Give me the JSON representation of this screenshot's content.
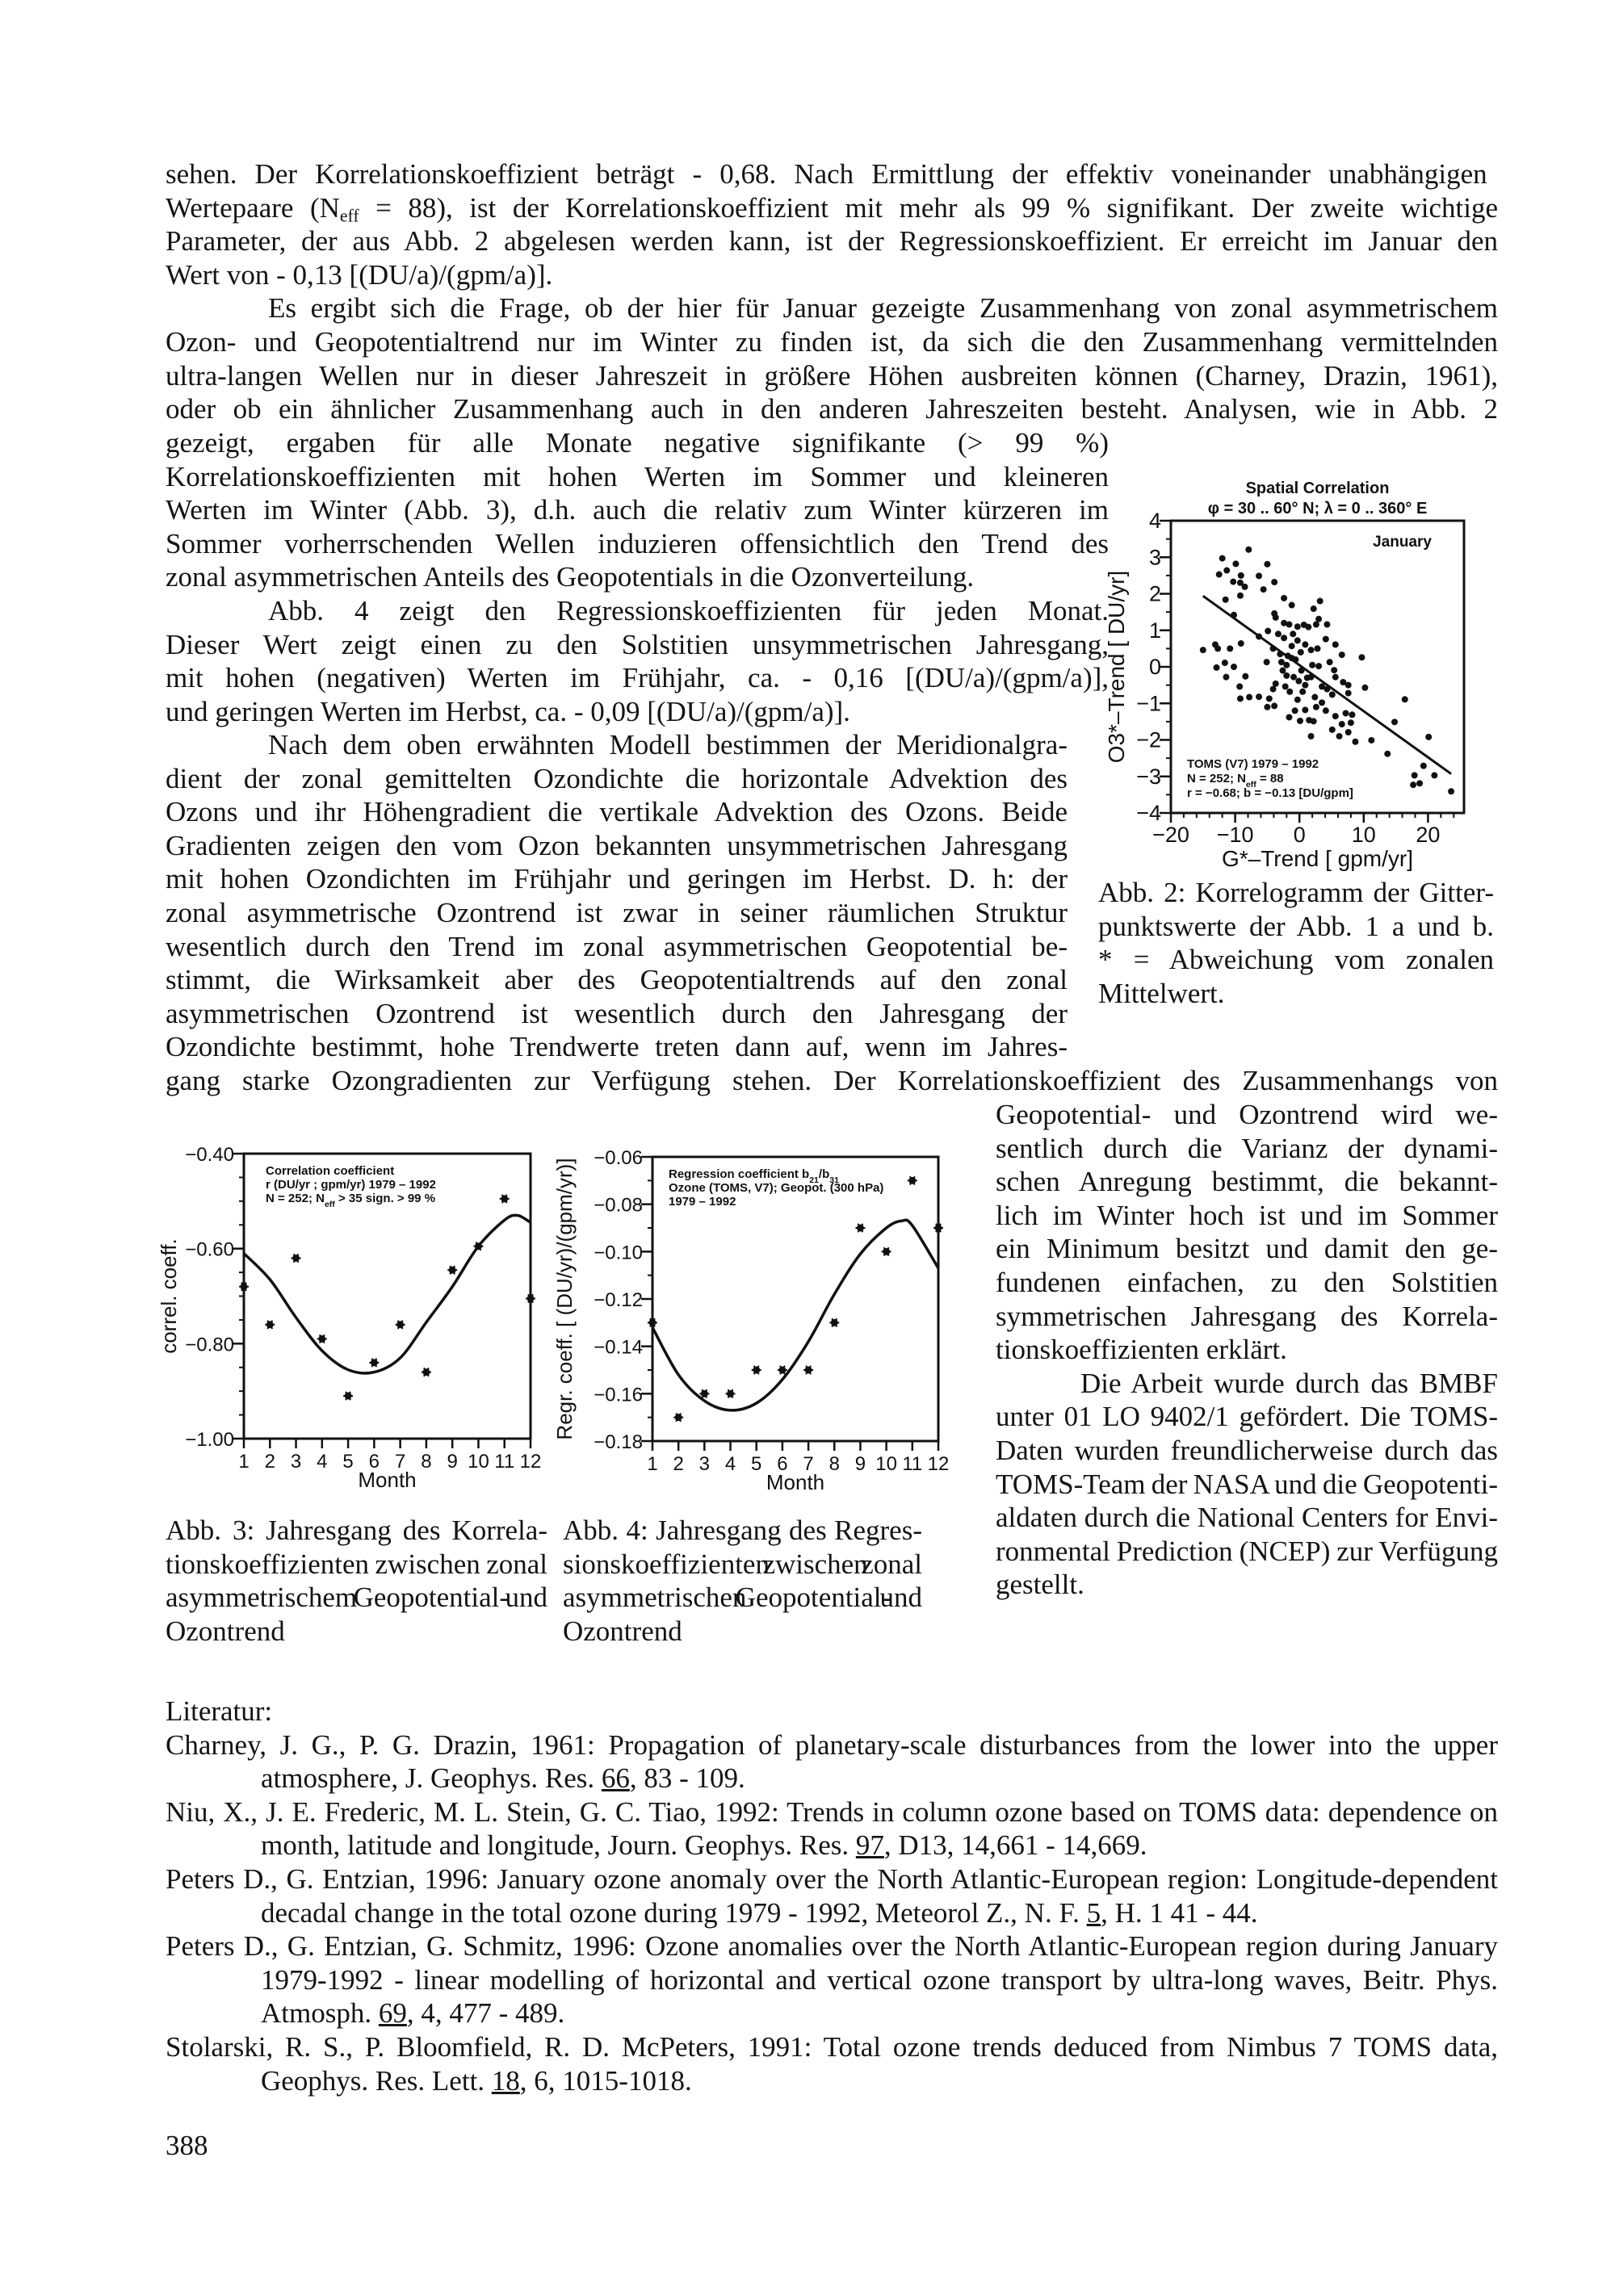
{
  "body": {
    "block_a": [
      "sehen. Der Korrelationskoeffizient beträgt - 0,68.  Nach Ermittlung der effektiv voneinander unabhängigen",
      [
        {
          "t": "Wertepaare (N"
        },
        {
          "t": "eff",
          "sub": true
        },
        {
          "t": " = 88), ist der Korrelationskoeffizient mit mehr als 99 % signifikant. Der zweite wichtige"
        }
      ],
      "Parameter, der aus Abb. 2 abgelesen werden kann, ist der Regressionskoeffizient. Er erreicht im Januar den",
      "Wert von - 0,13 [(DU/a)/(gpm/a)].",
      "Es ergibt sich die Frage, ob der hier für Januar gezeigte Zusammenhang von zonal asymmetrischem",
      "Ozon- und Geopotentialtrend nur im Winter zu finden ist, da sich die den Zusammenhang vermittelnden",
      "ultra-langen Wellen nur in dieser Jahreszeit in größere Höhen ausbreiten können (Charney, Drazin, 1961),",
      "oder ob ein ähnlicher Zusammenhang auch in den anderen Jahreszeiten besteht. Analysen, wie in Abb. 2"
    ],
    "block_b": [
      "gezeigt, ergaben für alle Monate negative signifikante (> 99 %)",
      "Korrelationskoeffizienten mit hohen Werten im Sommer und kleineren",
      "Werten im Winter (Abb. 3), d.h. auch die relativ zum Winter kürzeren im",
      "Sommer vorherrschenden Wellen induzieren offensichtlich den Trend des",
      "zonal asymmetrischen Anteils des Geopotentials in die Ozonverteilung.",
      "Abb. 4 zeigt den Regressionskoeffizienten für jeden Monat.",
      "Dieser Wert zeigt einen zu den Solstitien unsymmetrischen Jahresgang,",
      "mit hohen (negativen) Werten im Frühjahr, ca. - 0,16 [(DU/a)/(gpm/a)],",
      "und geringen Werten im Herbst, ca. - 0,09 [(DU/a)/(gpm/a)]."
    ],
    "block_c": [
      "Nach dem oben erwähnten Modell bestimmen der Meridionalgra-",
      "dient der zonal gemittelten Ozondichte die horizontale Advektion des",
      "Ozons und ihr Höhengradient die vertikale Advektion des Ozons. Beide",
      "Gradienten zeigen den vom Ozon bekannten unsymmetrischen Jahresgang",
      "mit hohen Ozondichten im Frühjahr und geringen im Herbst. D. h: der",
      "zonal asymmetrische Ozontrend ist zwar in seiner räumlichen Struktur",
      "wesentlich durch den Trend im zonal asymmetrischen Geopotential be-",
      "stimmt, die Wirksamkeit aber des Geopotentialtrends auf den zonal",
      "asymmetrischen Ozontrend ist wesentlich durch den Jahresgang der",
      "Ozondichte bestimmt, hohe Trendwerte treten dann auf, wenn im Jahres-"
    ],
    "block_d": [
      "gang starke Ozongradienten zur Verfügung stehen. Der Korrelationskoeffizient des Zusammenhangs von"
    ],
    "block_e": [
      "Geopotential- und Ozontrend wird we-",
      "sentlich durch die Varianz der dynami-",
      "schen Anregung bestimmt, die bekannt-",
      "lich im Winter hoch ist und im Sommer",
      "ein Minimum besitzt und damit den ge-",
      "fundenen einfachen, zu den Solstitien",
      "symmetrischen Jahresgang des Korrela-",
      "tionskoeffizienten erklärt.",
      "Die Arbeit wurde durch das BMBF",
      "unter 01 LO 9402/1 gefördert. Die TOMS-",
      "Daten wurden freundlicherweise durch das",
      "TOMS-Team der NASA und die Geopotenti-",
      "aldaten durch die National Centers for Envi-",
      "ronmental Prediction (NCEP) zur Verfügung",
      "gestellt."
    ]
  },
  "captions": {
    "abb2": [
      "Abb. 2: Korrelogramm der Gitter-",
      "punktswerte der Abb. 1 a und b.",
      "* = Abweichung vom zonalen",
      "Mittelwert."
    ],
    "abb3": [
      "Abb. 3: Jahresgang des Korrela-",
      "tionskoeffizienten zwischen zonal",
      "asymmetrischem Geopotential- und",
      "Ozontrend"
    ],
    "abb4": [
      "Abb. 4: Jahresgang des Regres-",
      "sionskoeffizienten zwischen zonal",
      "asymmetrischen Geopotential- und",
      "Ozontrend"
    ]
  },
  "literature": {
    "heading": "Literatur:",
    "entries": [
      {
        "lines": [
          "Charney, J. G., P. G. Drazin, 1961: Propagation of planetary-scale disturbances from the lower into the upper",
          [
            {
              "t": "atmosphere, J. Geophys. Res. "
            },
            {
              "t": "66",
              "u": true
            },
            {
              "t": ", 83 - 109."
            }
          ]
        ]
      },
      {
        "lines": [
          "Niu, X., J. E. Frederic, M. L. Stein, G. C. Tiao, 1992: Trends in column ozone based on TOMS data: dependence on",
          [
            {
              "t": "month, latitude and longitude, Journ. Geophys. Res. "
            },
            {
              "t": "97",
              "u": true
            },
            {
              "t": ", D13, 14,661 - 14,669."
            }
          ]
        ]
      },
      {
        "lines": [
          "Peters D., G. Entzian, 1996: January ozone anomaly over the North Atlantic-European region: Longitude-dependent",
          [
            {
              "t": "decadal change in the total ozone during 1979 - 1992, Meteorol Z., N. F. "
            },
            {
              "t": "5",
              "u": true
            },
            {
              "t": ", H. 1 41 - 44."
            }
          ]
        ]
      },
      {
        "lines": [
          "Peters D., G. Entzian, G. Schmitz, 1996: Ozone anomalies over the North Atlantic-European region during January",
          "1979-1992 - linear modelling of horizontal and vertical ozone transport by ultra-long waves, Beitr. Phys.",
          [
            {
              "t": "Atmosph. "
            },
            {
              "t": "69",
              "u": true
            },
            {
              "t": ", 4, 477 - 489."
            }
          ]
        ]
      },
      {
        "lines": [
          "Stolarski, R. S., P. Bloomfield, R. D. McPeters, 1991: Total ozone trends deduced from Nimbus 7 TOMS data,",
          [
            {
              "t": "Geophys. Res. Lett. "
            },
            {
              "t": "18",
              "u": true
            },
            {
              "t": ", 6, 1015-1018."
            }
          ]
        ]
      }
    ]
  },
  "page_number": "388",
  "chart_data": [
    {
      "type": "scatter",
      "title": "Spatial Correlation",
      "subtitle": "φ = 30 .. 60° N; λ = 0 .. 360° E",
      "panel_label": "January",
      "xlabel": "G*–Trend [ gpm/yr]",
      "ylabel": "O3*–Trend [ DU/yr]",
      "xlim": [
        -20,
        25.6
      ],
      "ylim": [
        -4,
        4
      ],
      "xticks": [
        -20,
        -10,
        0,
        10,
        20
      ],
      "yticks": [
        -4,
        -3,
        -2,
        -1,
        0,
        1,
        2,
        3,
        4
      ],
      "grid": false,
      "annotation": [
        [
          {
            "t": "TOMS (V7) 1979 – 1992"
          }
        ],
        [
          {
            "t": "N = 252; N"
          },
          {
            "t": "eff",
            "sub": true
          },
          {
            "t": " = 88"
          }
        ],
        [
          {
            "t": "r = −0.68; b = −0.13 [DU/gpm]"
          }
        ]
      ],
      "points": [
        [
          -12.0,
          2.97
        ],
        [
          -12.5,
          2.53
        ],
        [
          -11.3,
          2.64
        ],
        [
          -9.9,
          2.82
        ],
        [
          -10.3,
          2.33
        ],
        [
          -9.1,
          2.5
        ],
        [
          -9.2,
          2.3
        ],
        [
          -8.5,
          2.19
        ],
        [
          -9.2,
          1.95
        ],
        [
          -7.9,
          3.21
        ],
        [
          -6.3,
          2.49
        ],
        [
          -5.0,
          2.81
        ],
        [
          -5.6,
          2.12
        ],
        [
          -3.9,
          2.32
        ],
        [
          -11.5,
          1.84
        ],
        [
          -10.2,
          1.42
        ],
        [
          -2.4,
          1.88
        ],
        [
          -1.2,
          1.69
        ],
        [
          3.2,
          1.8
        ],
        [
          2.2,
          1.59
        ],
        [
          -15.0,
          0.46
        ],
        [
          -13.1,
          0.61
        ],
        [
          -12.7,
          0.5
        ],
        [
          -10.8,
          0.5
        ],
        [
          -9.1,
          0.64
        ],
        [
          -12.9,
          -0.02
        ],
        [
          -11.6,
          0.11
        ],
        [
          -10.2,
          0.0
        ],
        [
          -11.4,
          -0.28
        ],
        [
          -8.4,
          -0.26
        ],
        [
          -9.3,
          -0.54
        ],
        [
          -9.2,
          -0.87
        ],
        [
          -7.8,
          -0.83
        ],
        [
          -6.3,
          -0.82
        ],
        [
          -4.7,
          -0.87
        ],
        [
          -5.0,
          -1.1
        ],
        [
          -3.9,
          -1.07
        ],
        [
          -6.3,
          0.83
        ],
        [
          -4.9,
          0.98
        ],
        [
          -3.9,
          1.46
        ],
        [
          -3.7,
          1.35
        ],
        [
          -2.4,
          1.2
        ],
        [
          -1.6,
          1.16
        ],
        [
          -2.4,
          0.79
        ],
        [
          -4.1,
          0.5
        ],
        [
          -5.1,
          0.13
        ],
        [
          -2.8,
          0.13
        ],
        [
          -2.0,
          0.05
        ],
        [
          -1.2,
          0.24
        ],
        [
          -0.3,
          1.1
        ],
        [
          0.7,
          1.15
        ],
        [
          1.4,
          1.09
        ],
        [
          2.6,
          1.16
        ],
        [
          3.0,
          1.31
        ],
        [
          4.3,
          1.16
        ],
        [
          4.1,
          0.76
        ],
        [
          5.6,
          0.61
        ],
        [
          6.6,
          0.33
        ],
        [
          9.7,
          0.26
        ],
        [
          -0.3,
          0.72
        ],
        [
          -1.2,
          0.57
        ],
        [
          0.9,
          0.61
        ],
        [
          1.8,
          0.46
        ],
        [
          2.8,
          0.5
        ],
        [
          4.7,
          0.13
        ],
        [
          2.0,
          0.05
        ],
        [
          3.0,
          0.02
        ],
        [
          -2.0,
          -0.24
        ],
        [
          -0.9,
          -0.28
        ],
        [
          -3.7,
          -0.46
        ],
        [
          -4.1,
          -0.61
        ],
        [
          -2.2,
          -0.54
        ],
        [
          -1.5,
          -0.68
        ],
        [
          -0.1,
          -0.39
        ],
        [
          0.9,
          -0.5
        ],
        [
          1.8,
          -0.28
        ],
        [
          0.5,
          -0.68
        ],
        [
          -0.3,
          -0.9
        ],
        [
          -0.7,
          -1.2
        ],
        [
          -1.6,
          -1.38
        ],
        [
          0.1,
          -1.48
        ],
        [
          0.9,
          -1.18
        ],
        [
          1.5,
          -1.46
        ],
        [
          2.2,
          -1.49
        ],
        [
          1.8,
          -1.9
        ],
        [
          3.5,
          -0.98
        ],
        [
          4.1,
          -1.2
        ],
        [
          2.4,
          -0.83
        ],
        [
          3.5,
          -0.54
        ],
        [
          4.3,
          -0.61
        ],
        [
          5.1,
          -0.76
        ],
        [
          5.6,
          -0.28
        ],
        [
          5.4,
          -0.09
        ],
        [
          6.8,
          -0.42
        ],
        [
          7.6,
          -0.5
        ],
        [
          7.6,
          -0.72
        ],
        [
          7.2,
          -1.27
        ],
        [
          8.2,
          -1.31
        ],
        [
          8.0,
          -1.53
        ],
        [
          6.6,
          -1.57
        ],
        [
          7.6,
          -1.79
        ],
        [
          5.1,
          -1.72
        ],
        [
          5.6,
          -1.35
        ],
        [
          6.2,
          -1.9
        ],
        [
          8.7,
          -2.05
        ],
        [
          10.2,
          -0.57
        ],
        [
          11.2,
          -2.01
        ],
        [
          13.7,
          -2.38
        ],
        [
          14.8,
          -1.51
        ],
        [
          16.4,
          -0.89
        ],
        [
          17.9,
          -2.97
        ],
        [
          17.7,
          -3.23
        ],
        [
          18.7,
          -3.19
        ],
        [
          19.3,
          -2.71
        ],
        [
          20.1,
          -1.92
        ],
        [
          21.0,
          -2.97
        ],
        [
          23.6,
          -3.41
        ],
        [
          -3.0,
          0.35
        ],
        [
          -1.8,
          0.3
        ],
        [
          -0.6,
          0.2
        ],
        [
          0.3,
          -0.1
        ],
        [
          1.2,
          -0.3
        ],
        [
          -3.3,
          0.9
        ],
        [
          -1.0,
          0.9
        ],
        [
          0.2,
          0.4
        ],
        [
          -2.6,
          -0.1
        ],
        [
          2.6,
          -1.1
        ]
      ],
      "regression_line": {
        "x": [
          -15.0,
          23.6
        ],
        "y": [
          1.94,
          -2.93
        ]
      }
    },
    {
      "type": "scatter",
      "xlabel": "Month",
      "ylabel": "correl. coeff.",
      "xlim": [
        1,
        12
      ],
      "ylim": [
        -1.0,
        -0.4
      ],
      "xticks": [
        1,
        2,
        3,
        4,
        5,
        6,
        7,
        8,
        9,
        10,
        11,
        12
      ],
      "yticks": [
        -1.0,
        -0.8,
        -0.6,
        -0.4
      ],
      "grid": false,
      "annotation": [
        [
          {
            "t": "Correlation coefficient"
          }
        ],
        [
          {
            "t": "r (DU/yr ; gpm/yr) 1979 – 1992"
          }
        ],
        [
          {
            "t": "N = 252; N"
          },
          {
            "t": "eff",
            "sub": true
          },
          {
            "t": " > 35 sign. > 99 %"
          }
        ]
      ],
      "x": [
        1,
        2,
        3,
        4,
        5,
        6,
        7,
        8,
        9,
        10,
        11,
        12
      ],
      "values": [
        -0.68,
        -0.76,
        -0.62,
        -0.79,
        -0.91,
        -0.84,
        -0.76,
        -0.86,
        -0.645,
        -0.595,
        -0.495,
        -0.705
      ],
      "fit_curve": {
        "x": [
          1,
          2,
          3,
          4,
          5,
          6,
          7,
          8,
          9,
          10,
          11,
          11.5,
          12
        ],
        "y": [
          -0.61,
          -0.665,
          -0.745,
          -0.815,
          -0.855,
          -0.86,
          -0.83,
          -0.755,
          -0.68,
          -0.595,
          -0.54,
          -0.53,
          -0.545
        ]
      }
    },
    {
      "type": "scatter",
      "xlabel": "Month",
      "ylabel": "Regr. coeff. [ (DU/yr)/(gpm/yr)]",
      "xlim": [
        1,
        12
      ],
      "ylim": [
        -0.18,
        -0.06
      ],
      "xticks": [
        1,
        2,
        3,
        4,
        5,
        6,
        7,
        8,
        9,
        10,
        11,
        12
      ],
      "yticks": [
        -0.18,
        -0.16,
        -0.14,
        -0.12,
        -0.1,
        -0.08,
        -0.06
      ],
      "grid": false,
      "annotation": [
        [
          {
            "t": "Regression coefficient b"
          },
          {
            "t": "21",
            "sub": true
          },
          {
            "t": "/b"
          },
          {
            "t": "31",
            "sub": true
          }
        ],
        [
          {
            "t": "Ozone (TOMS, V7); Geopot. (300 hPa)"
          }
        ],
        [
          {
            "t": "1979 – 1992"
          }
        ]
      ],
      "x": [
        1,
        2,
        3,
        4,
        5,
        6,
        7,
        8,
        9,
        10,
        11,
        12
      ],
      "values": [
        -0.13,
        -0.17,
        -0.16,
        -0.16,
        -0.15,
        -0.15,
        -0.15,
        -0.13,
        -0.09,
        -0.1,
        -0.07,
        -0.09
      ],
      "fit_curve": {
        "x": [
          1,
          2,
          3,
          4,
          5,
          6,
          7,
          8,
          9,
          10,
          10.6,
          11,
          12
        ],
        "y": [
          -0.132,
          -0.152,
          -0.163,
          -0.167,
          -0.164,
          -0.154,
          -0.138,
          -0.118,
          -0.101,
          -0.09,
          -0.087,
          -0.089,
          -0.107
        ]
      }
    }
  ]
}
